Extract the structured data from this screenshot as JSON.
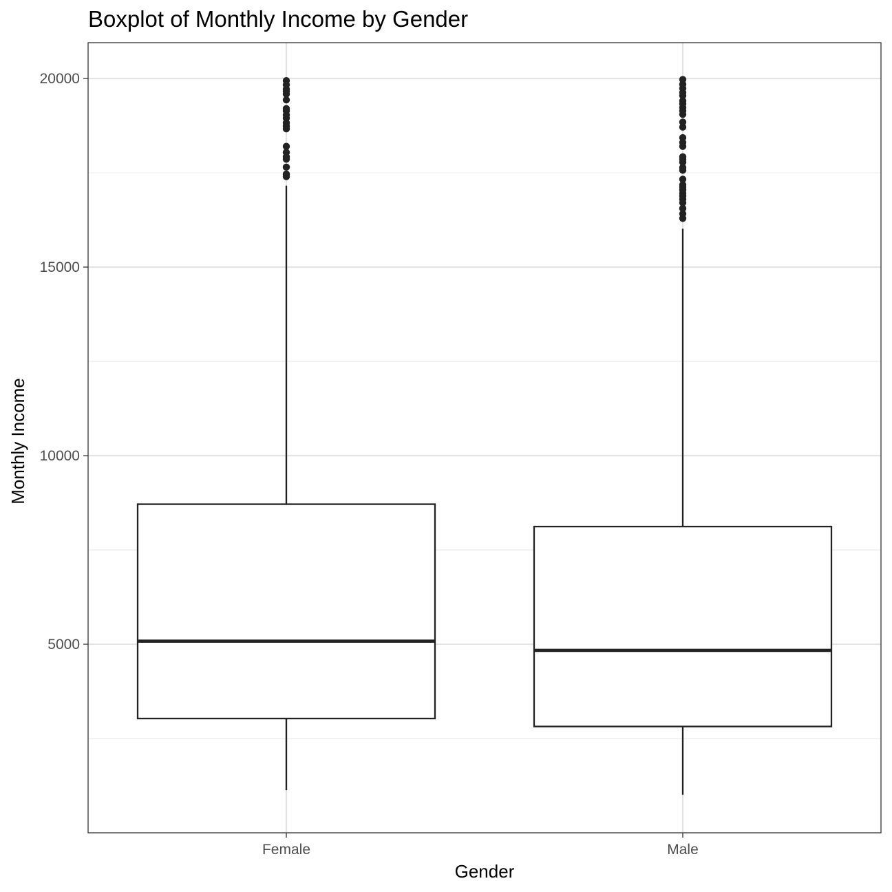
{
  "chart_data": {
    "type": "boxplot",
    "title": "Boxplot of Monthly Income by Gender",
    "xlabel": "Gender",
    "ylabel": "Monthly Income",
    "categories": [
      "Female",
      "Male"
    ],
    "ylim": [
      0,
      20950
    ],
    "yticks": [
      5000,
      10000,
      15000,
      20000
    ],
    "yminor": [
      2500,
      7500,
      12500,
      17500
    ],
    "grid": true,
    "legend": "none",
    "series": [
      {
        "whisker_low": 1129,
        "q1": 3030,
        "median": 5082,
        "q3": 8713,
        "whisker_high": 17159,
        "outliers": [
          17399,
          17465,
          17650,
          17861,
          17924,
          18041,
          18200,
          18665,
          18740,
          18824,
          18947,
          19033,
          19141,
          19202,
          19431,
          19586,
          19665,
          19717,
          19833,
          19943
        ]
      },
      {
        "whisker_low": 1009,
        "q1": 2819,
        "median": 4838,
        "q3": 8120,
        "whisker_high": 16015,
        "outliers": [
          16291,
          16413,
          16555,
          16704,
          16799,
          16885,
          16959,
          17048,
          17123,
          17181,
          17328,
          17567,
          17639,
          17779,
          17856,
          17924,
          18200,
          18303,
          18430,
          18711,
          18844,
          19049,
          19144,
          19232,
          19328,
          19406,
          19545,
          19627,
          19737,
          19847,
          19973
        ]
      }
    ]
  }
}
